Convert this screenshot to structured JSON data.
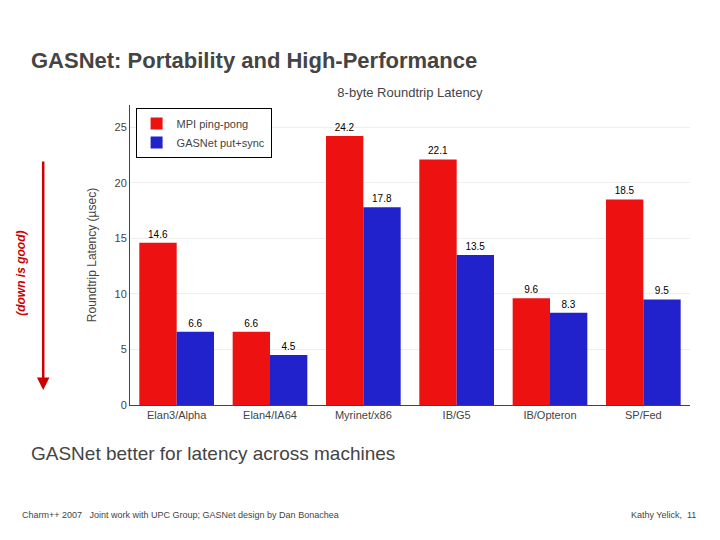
{
  "chart_data": {
    "type": "bar",
    "title": "8-byte Roundtrip Latency",
    "subtitle": "GASNet better for latency across machines",
    "ylabel": "Roundtrip Latency (µsec)",
    "categories": [
      "Elan3/Alpha",
      "Elan4/IA64",
      "Myrinet/x86",
      "IB/G5",
      "IB/Opteron",
      "SP/Fed"
    ],
    "series": [
      {
        "name": "MPI ping-pong",
        "color": "#ee1111",
        "values": [
          14.6,
          6.6,
          24.2,
          22.1,
          9.6,
          18.5
        ]
      },
      {
        "name": "GASNet put+sync",
        "color": "#2222cc",
        "values": [
          6.6,
          4.5,
          17.8,
          13.5,
          8.3,
          9.5
        ]
      }
    ],
    "ylim": [
      0,
      27
    ],
    "yticks": [
      0,
      5,
      10,
      15,
      20,
      25
    ],
    "grid": true,
    "legend": "upper left",
    "data_labels": true,
    "annotations": [
      {
        "text": "GASNet: Portability and High-Performance"
      },
      {
        "text": "(down is good)",
        "color": "#cc0000"
      },
      {
        "text": "Charm++ 2007   Joint work with UPC Group; GASNet design by Dan Bonachea"
      },
      {
        "text": "Kathy Yelick,  11"
      }
    ]
  }
}
